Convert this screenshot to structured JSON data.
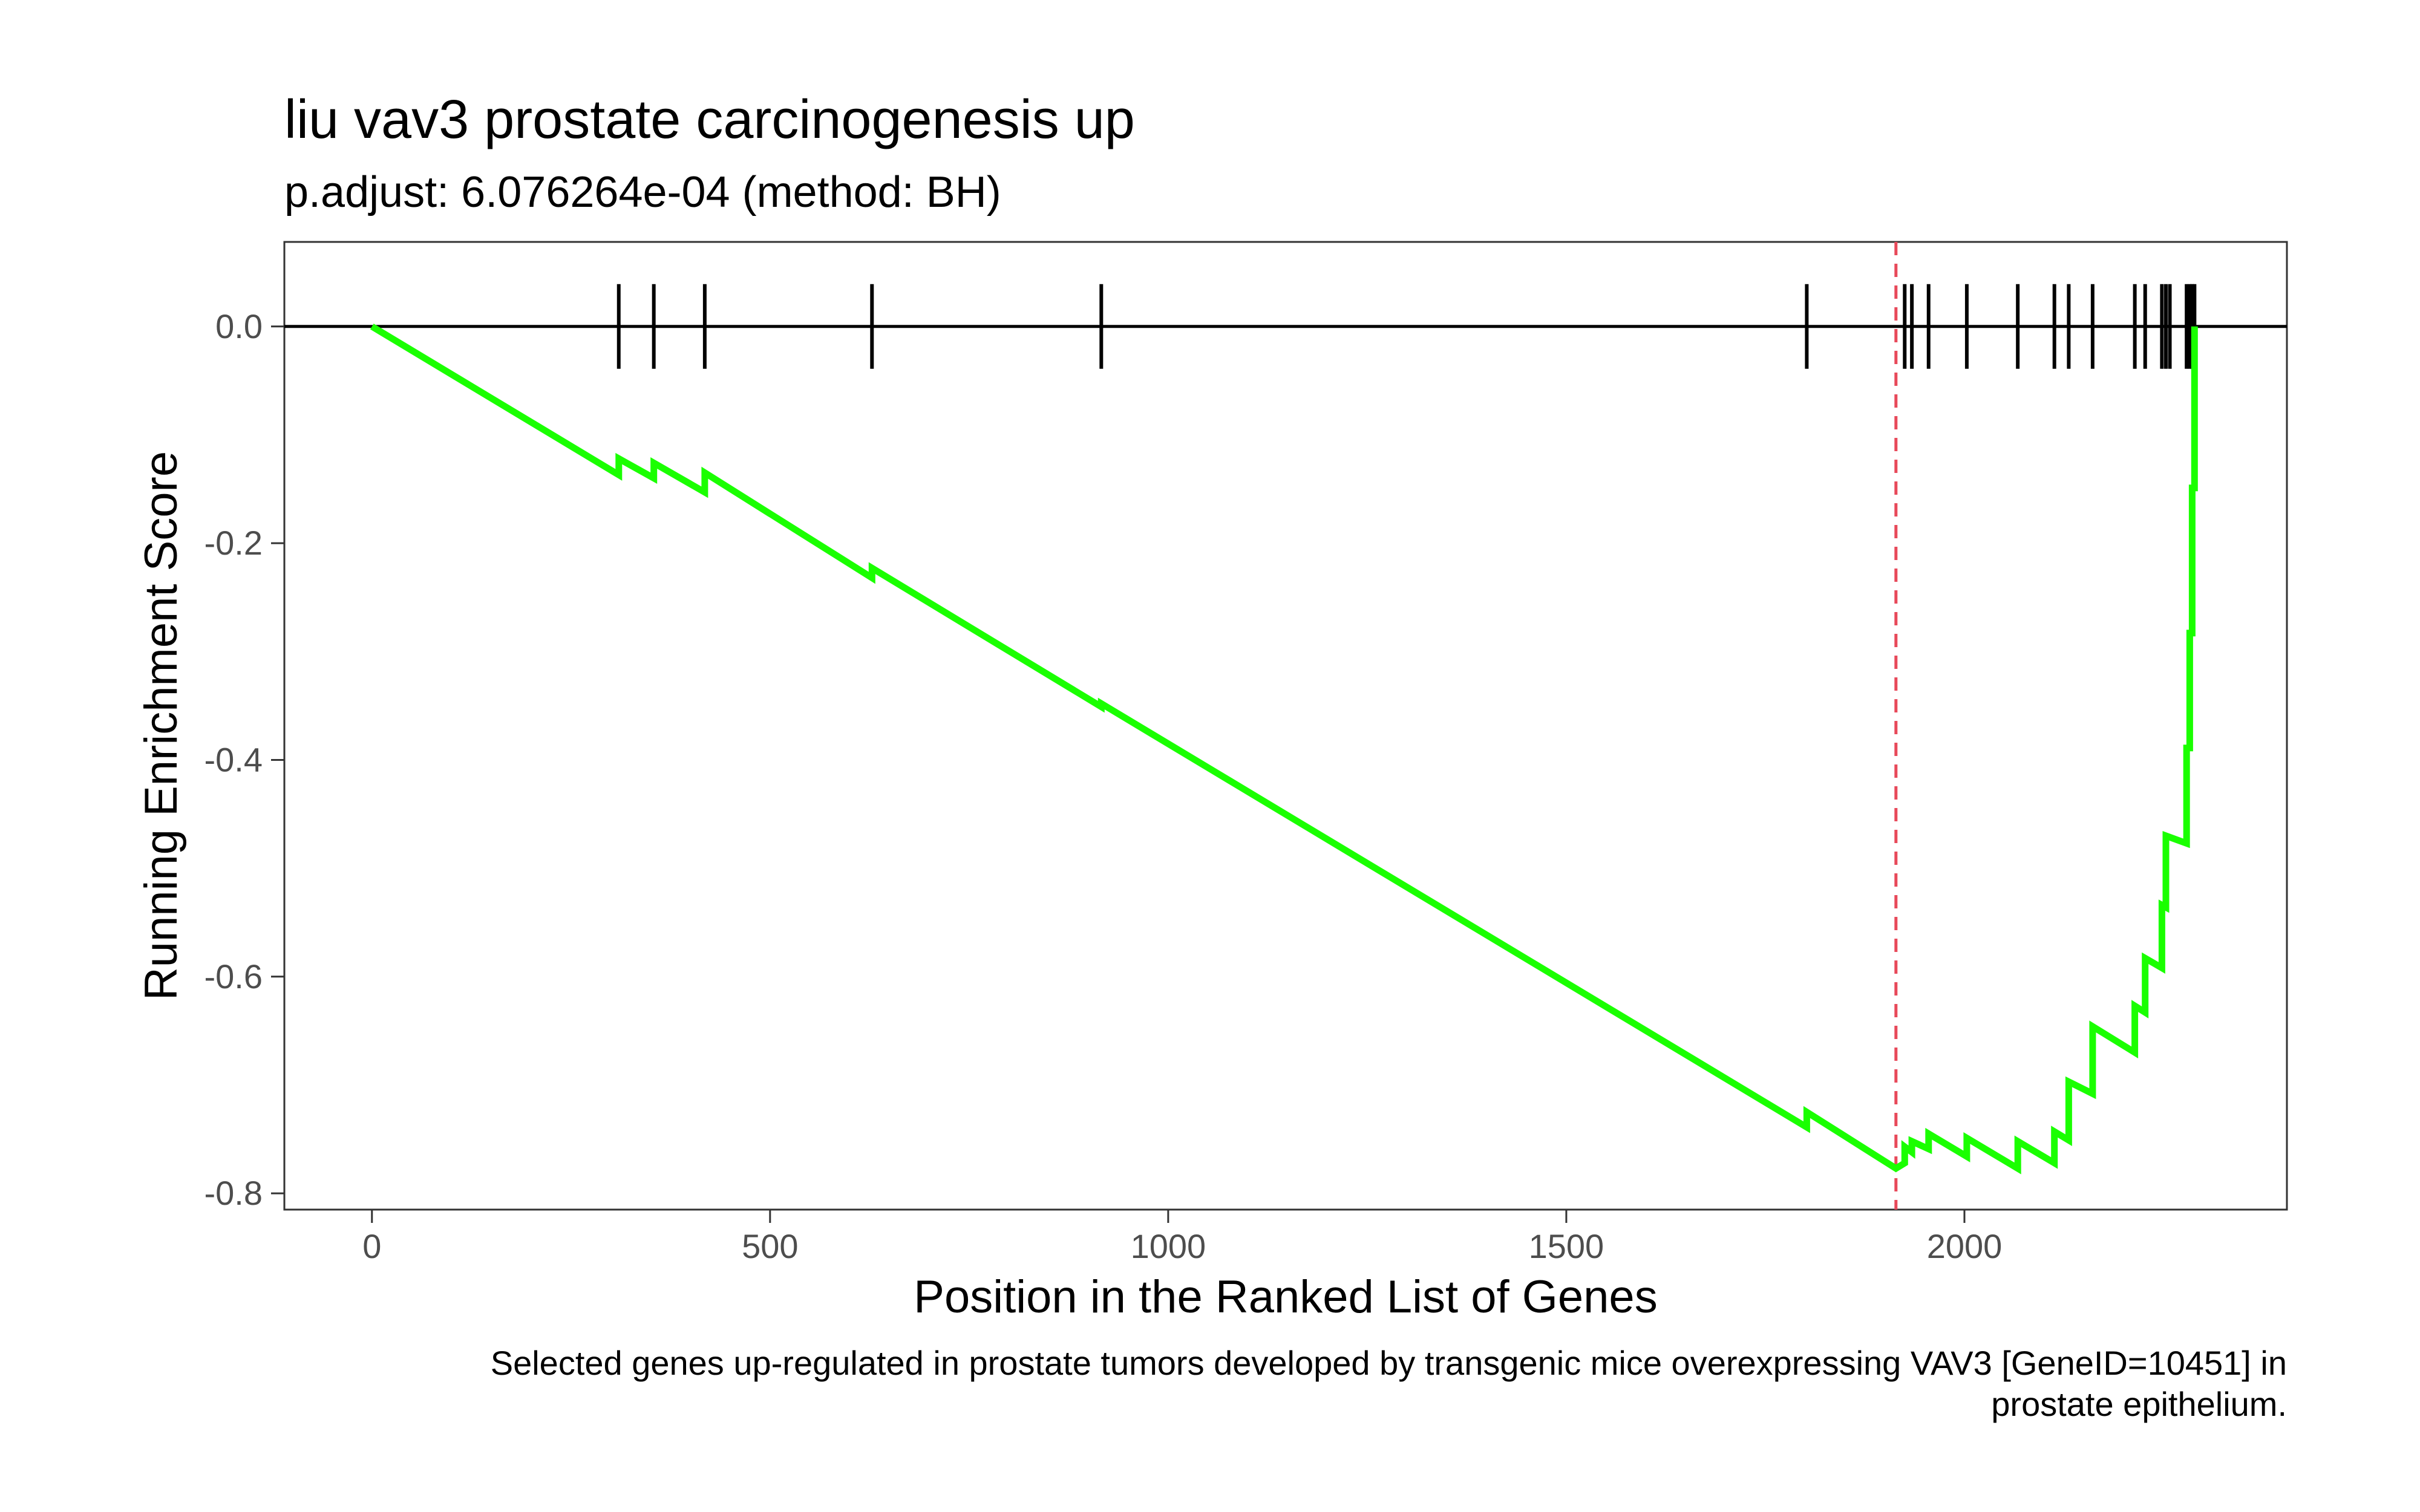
{
  "chart_data": {
    "type": "line",
    "title": "liu vav3 prostate carcinogenesis up",
    "subtitle": "p.adjust: 6.076264e-04 (method: BH)",
    "xlabel": "Position in the Ranked List of Genes",
    "ylabel": "Running Enrichment Score",
    "caption_lines": [
      "Selected genes up-regulated in prostate tumors developed by transgenic mice overexpressing VAV3 [GeneID=10451] in",
      "prostate epithelium."
    ],
    "xlim": [
      -110,
      2405
    ],
    "ylim": [
      -0.815,
      0.078
    ],
    "x_ticks": [
      0,
      500,
      1000,
      1500,
      2000
    ],
    "x_tick_labels": [
      "0",
      "500",
      "1000",
      "1500",
      "2000"
    ],
    "y_ticks": [
      0.0,
      -0.2,
      -0.4,
      -0.6,
      -0.8
    ],
    "y_tick_labels": [
      "0.0",
      "-0.2",
      "-0.4",
      "-0.6",
      "-0.8"
    ],
    "gene_hits": [
      310,
      354,
      418,
      628,
      916,
      1802,
      1925,
      1934,
      1955,
      2003,
      2067,
      2113,
      2131,
      2161,
      2214,
      2227,
      2248,
      2253,
      2258,
      2279,
      2283,
      2286,
      2289
    ],
    "series": [
      {
        "values": [
          [
            0,
            0.0
          ],
          [
            310,
            -0.137
          ],
          [
            310,
            -0.122
          ],
          [
            354,
            -0.14
          ],
          [
            354,
            -0.126
          ],
          [
            418,
            -0.153
          ],
          [
            418,
            -0.135
          ],
          [
            628,
            -0.232
          ],
          [
            628,
            -0.223
          ],
          [
            916,
            -0.351
          ],
          [
            916,
            -0.348
          ],
          [
            1802,
            -0.739
          ],
          [
            1802,
            -0.725
          ],
          [
            1914,
            -0.777
          ],
          [
            1925,
            -0.772
          ],
          [
            1925,
            -0.757
          ],
          [
            1934,
            -0.762
          ],
          [
            1934,
            -0.752
          ],
          [
            1955,
            -0.759
          ],
          [
            1955,
            -0.745
          ],
          [
            2003,
            -0.766
          ],
          [
            2003,
            -0.749
          ],
          [
            2067,
            -0.777
          ],
          [
            2067,
            -0.752
          ],
          [
            2113,
            -0.772
          ],
          [
            2113,
            -0.743
          ],
          [
            2131,
            -0.751
          ],
          [
            2131,
            -0.697
          ],
          [
            2161,
            -0.708
          ],
          [
            2161,
            -0.646
          ],
          [
            2214,
            -0.67
          ],
          [
            2214,
            -0.627
          ],
          [
            2227,
            -0.633
          ],
          [
            2227,
            -0.583
          ],
          [
            2248,
            -0.592
          ],
          [
            2248,
            -0.534
          ],
          [
            2253,
            -0.536
          ],
          [
            2253,
            -0.47
          ],
          [
            2279,
            -0.477
          ],
          [
            2279,
            -0.389
          ],
          [
            2283,
            -0.389
          ],
          [
            2283,
            -0.283
          ],
          [
            2286,
            -0.283
          ],
          [
            2286,
            -0.149
          ],
          [
            2289,
            -0.149
          ],
          [
            2289,
            0.0
          ]
        ],
        "color": "#1aff00"
      }
    ],
    "peak_position": 1914,
    "peak_line_color": "#e8495a",
    "zero_line_color": "#000000",
    "grid": false
  }
}
